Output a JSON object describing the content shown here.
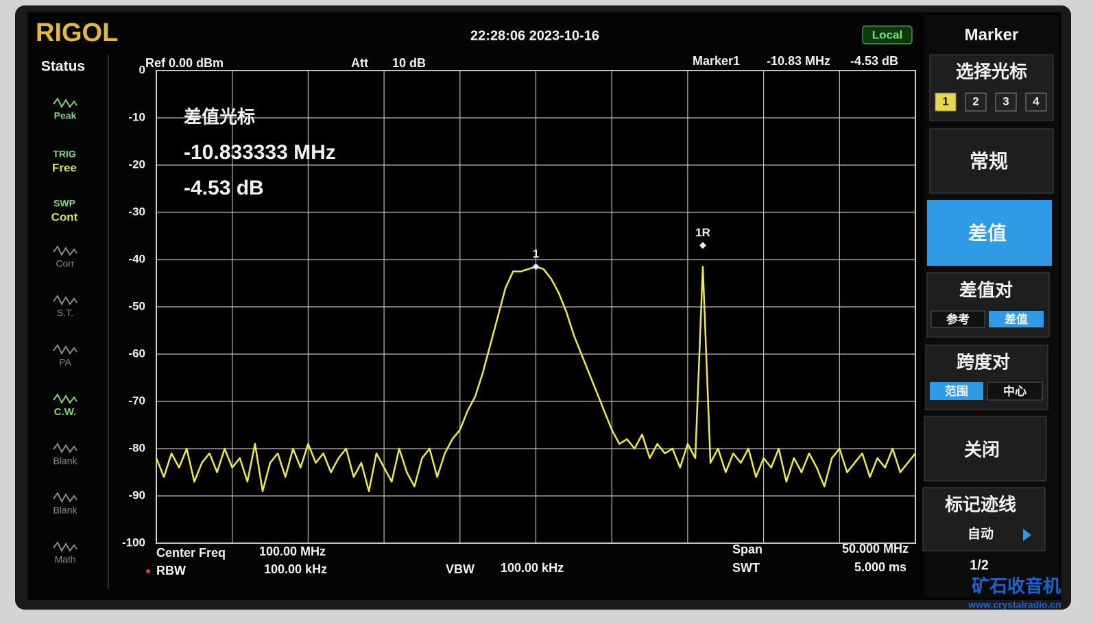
{
  "header": {
    "brand": "RIGOL",
    "datetime": "22:28:06 2023-10-16",
    "mode": "Local"
  },
  "status": {
    "title": "Status",
    "items": [
      {
        "label": "Peak"
      },
      {
        "label": "TRIG",
        "value": "Free"
      },
      {
        "label": "SWP",
        "value": "Cont"
      },
      {
        "label": "Corr"
      },
      {
        "label": "S.T."
      },
      {
        "label": "PA"
      },
      {
        "label": "C.W."
      },
      {
        "label": "Blank"
      },
      {
        "label": "Blank"
      },
      {
        "label": "Math"
      }
    ]
  },
  "top_info": {
    "ref": "Ref 0.00 dBm",
    "att_label": "Att",
    "att_value": "10 dB",
    "marker_label": "Marker1",
    "marker_freq": "-10.83 MHz",
    "marker_level": "-4.53 dB"
  },
  "annotation": {
    "title": "差值光标",
    "freq": "-10.833333 MHz",
    "level": "-4.53 dB"
  },
  "bottom_info": {
    "center_label": "Center Freq",
    "center_value": "100.00 MHz",
    "rbw_label": "RBW",
    "rbw_value": "100.00 kHz",
    "vbw_label": "VBW",
    "vbw_value": "100.00 kHz",
    "span_label": "Span",
    "span_value": "50.000 MHz",
    "swt_label": "SWT",
    "swt_value": "5.000 ms"
  },
  "menu": {
    "title": "Marker",
    "select": {
      "label": "选择光标",
      "options": [
        "1",
        "2",
        "3",
        "4"
      ]
    },
    "normal": "常规",
    "delta": "差值",
    "delta_pair": {
      "label": "差值对",
      "options": [
        "参考",
        "差值"
      ]
    },
    "span_pair": {
      "label": "跨度对",
      "options": [
        "范围",
        "中心"
      ]
    },
    "off": "关闭",
    "trace": {
      "label": "标记迹线",
      "value": "自动"
    },
    "page": "1/2"
  },
  "watermark": {
    "name": "矿石收音机",
    "url": "www.crystalradio.cn"
  },
  "chart_data": {
    "type": "line",
    "color": "#f0ec3a",
    "x": [
      75,
      75.5,
      76,
      76.5,
      77,
      77.5,
      78,
      78.5,
      79,
      79.5,
      80,
      80.5,
      81,
      81.5,
      82,
      82.5,
      83,
      83.5,
      84,
      84.5,
      85,
      85.5,
      86,
      86.5,
      87,
      87.5,
      88,
      88.5,
      89,
      89.5,
      90,
      90.5,
      91,
      91.5,
      92,
      92.5,
      93,
      93.5,
      94,
      94.5,
      95,
      95.5,
      96,
      96.5,
      97,
      97.5,
      98,
      98.5,
      99,
      99.5,
      100,
      100.5,
      101,
      101.5,
      102,
      102.5,
      103,
      103.5,
      104,
      104.5,
      105,
      105.5,
      106,
      106.5,
      107,
      107.5,
      108,
      108.5,
      109,
      109.5,
      110,
      110.5,
      111,
      111.5,
      112,
      112.5,
      113,
      113.5,
      114,
      114.5,
      115,
      115.5,
      116,
      116.5,
      117,
      117.5,
      118,
      118.5,
      119,
      119.5,
      120,
      120.5,
      121,
      121.5,
      122,
      122.5,
      123,
      123.5,
      124,
      124.5,
      125
    ],
    "values": [
      -82,
      -86,
      -81,
      -84,
      -80,
      -87,
      -83,
      -81,
      -85,
      -80,
      -84,
      -82,
      -87,
      -79,
      -89,
      -83,
      -81,
      -86,
      -80,
      -84,
      -79,
      -83,
      -81,
      -85,
      -82,
      -80,
      -86,
      -83,
      -89,
      -81,
      -84,
      -87,
      -80,
      -85,
      -88,
      -82,
      -80,
      -86,
      -81,
      -78,
      -76,
      -72,
      -69,
      -64,
      -58,
      -52,
      -46,
      -42.5,
      -42.5,
      -42,
      -41.5,
      -42,
      -44,
      -47,
      -51,
      -56,
      -60,
      -64,
      -68,
      -72,
      -76,
      -79,
      -78,
      -80,
      -77,
      -82,
      -79,
      -81,
      -80,
      -84,
      -79,
      -82,
      -41.5,
      -83,
      -80,
      -85,
      -81,
      -83,
      -80,
      -86,
      -82,
      -84,
      -80,
      -87,
      -82,
      -85,
      -81,
      -84,
      -88,
      -82,
      -80,
      -85,
      -83,
      -81,
      -86,
      -82,
      -84,
      -80,
      -85,
      -83,
      -81
    ],
    "xlim": [
      75,
      125
    ],
    "ylim": [
      -100,
      0
    ],
    "yticks": [
      0,
      -10,
      -20,
      -30,
      -40,
      -50,
      -60,
      -70,
      -80,
      -90,
      -100
    ],
    "grid": true,
    "markers": [
      {
        "label": "1",
        "x": 100,
        "y": -41.5
      },
      {
        "label": "1R",
        "x": 111,
        "y": -37
      }
    ]
  }
}
